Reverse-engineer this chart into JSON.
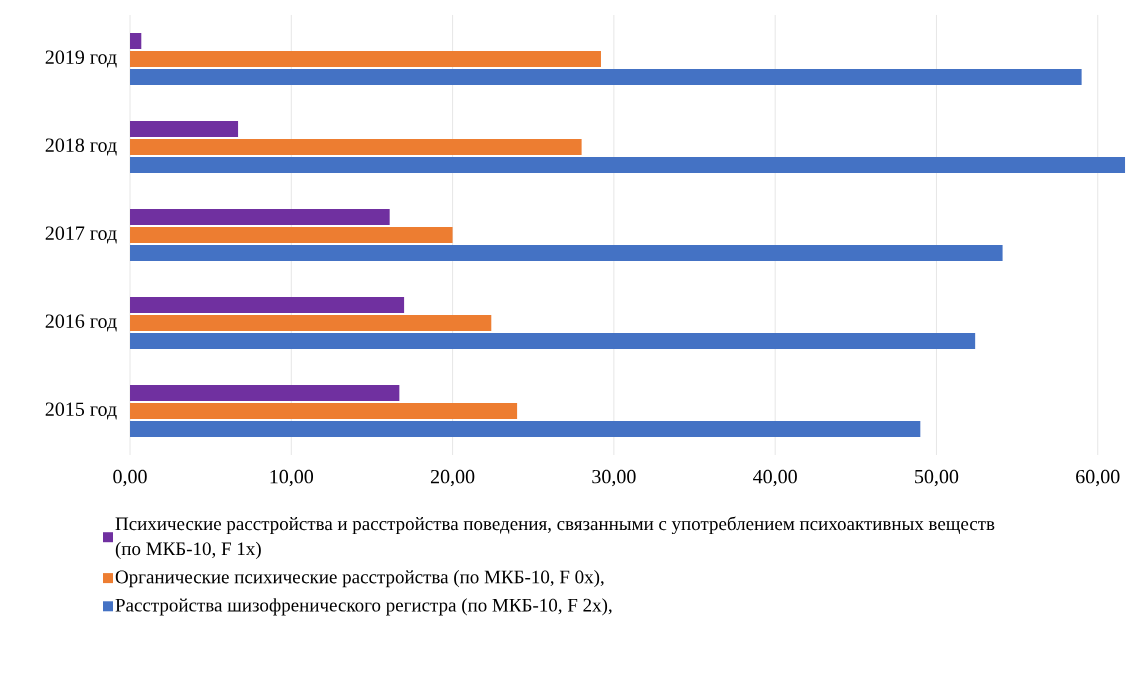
{
  "chart_data": {
    "type": "bar",
    "orientation": "horizontal",
    "categories": [
      "2019 год",
      "2018 год",
      "2017 год",
      "2016 год",
      "2015 год"
    ],
    "series": [
      {
        "name": "Психические  расстройства и расстройства поведения, связанными с употреблением психоактивных веществ (по МКБ-10, F 1x)",
        "color": "#7030a0",
        "values": [
          0.7,
          6.7,
          16.1,
          17.0,
          16.7
        ]
      },
      {
        "name": "Органические  психические расстройства (по МКБ-10, F 0x),",
        "color": "#ed7d31",
        "values": [
          29.2,
          28.0,
          20.0,
          22.4,
          24.0
        ]
      },
      {
        "name": "Расстройства шизофренического регистра (по МКБ-10, F 2x),",
        "color": "#4472c4",
        "values": [
          59.0,
          61.7,
          54.1,
          52.4,
          49.0
        ]
      }
    ],
    "xlim": [
      0,
      62
    ],
    "xticks": [
      {
        "value": 0,
        "label": "0,00"
      },
      {
        "value": 10,
        "label": "10,00"
      },
      {
        "value": 20,
        "label": "20,00"
      },
      {
        "value": 30,
        "label": "30,00"
      },
      {
        "value": 40,
        "label": "40,00"
      },
      {
        "value": 50,
        "label": "50,00"
      },
      {
        "value": 60,
        "label": "60,00"
      }
    ],
    "grid": "x",
    "legend": "bottom"
  }
}
